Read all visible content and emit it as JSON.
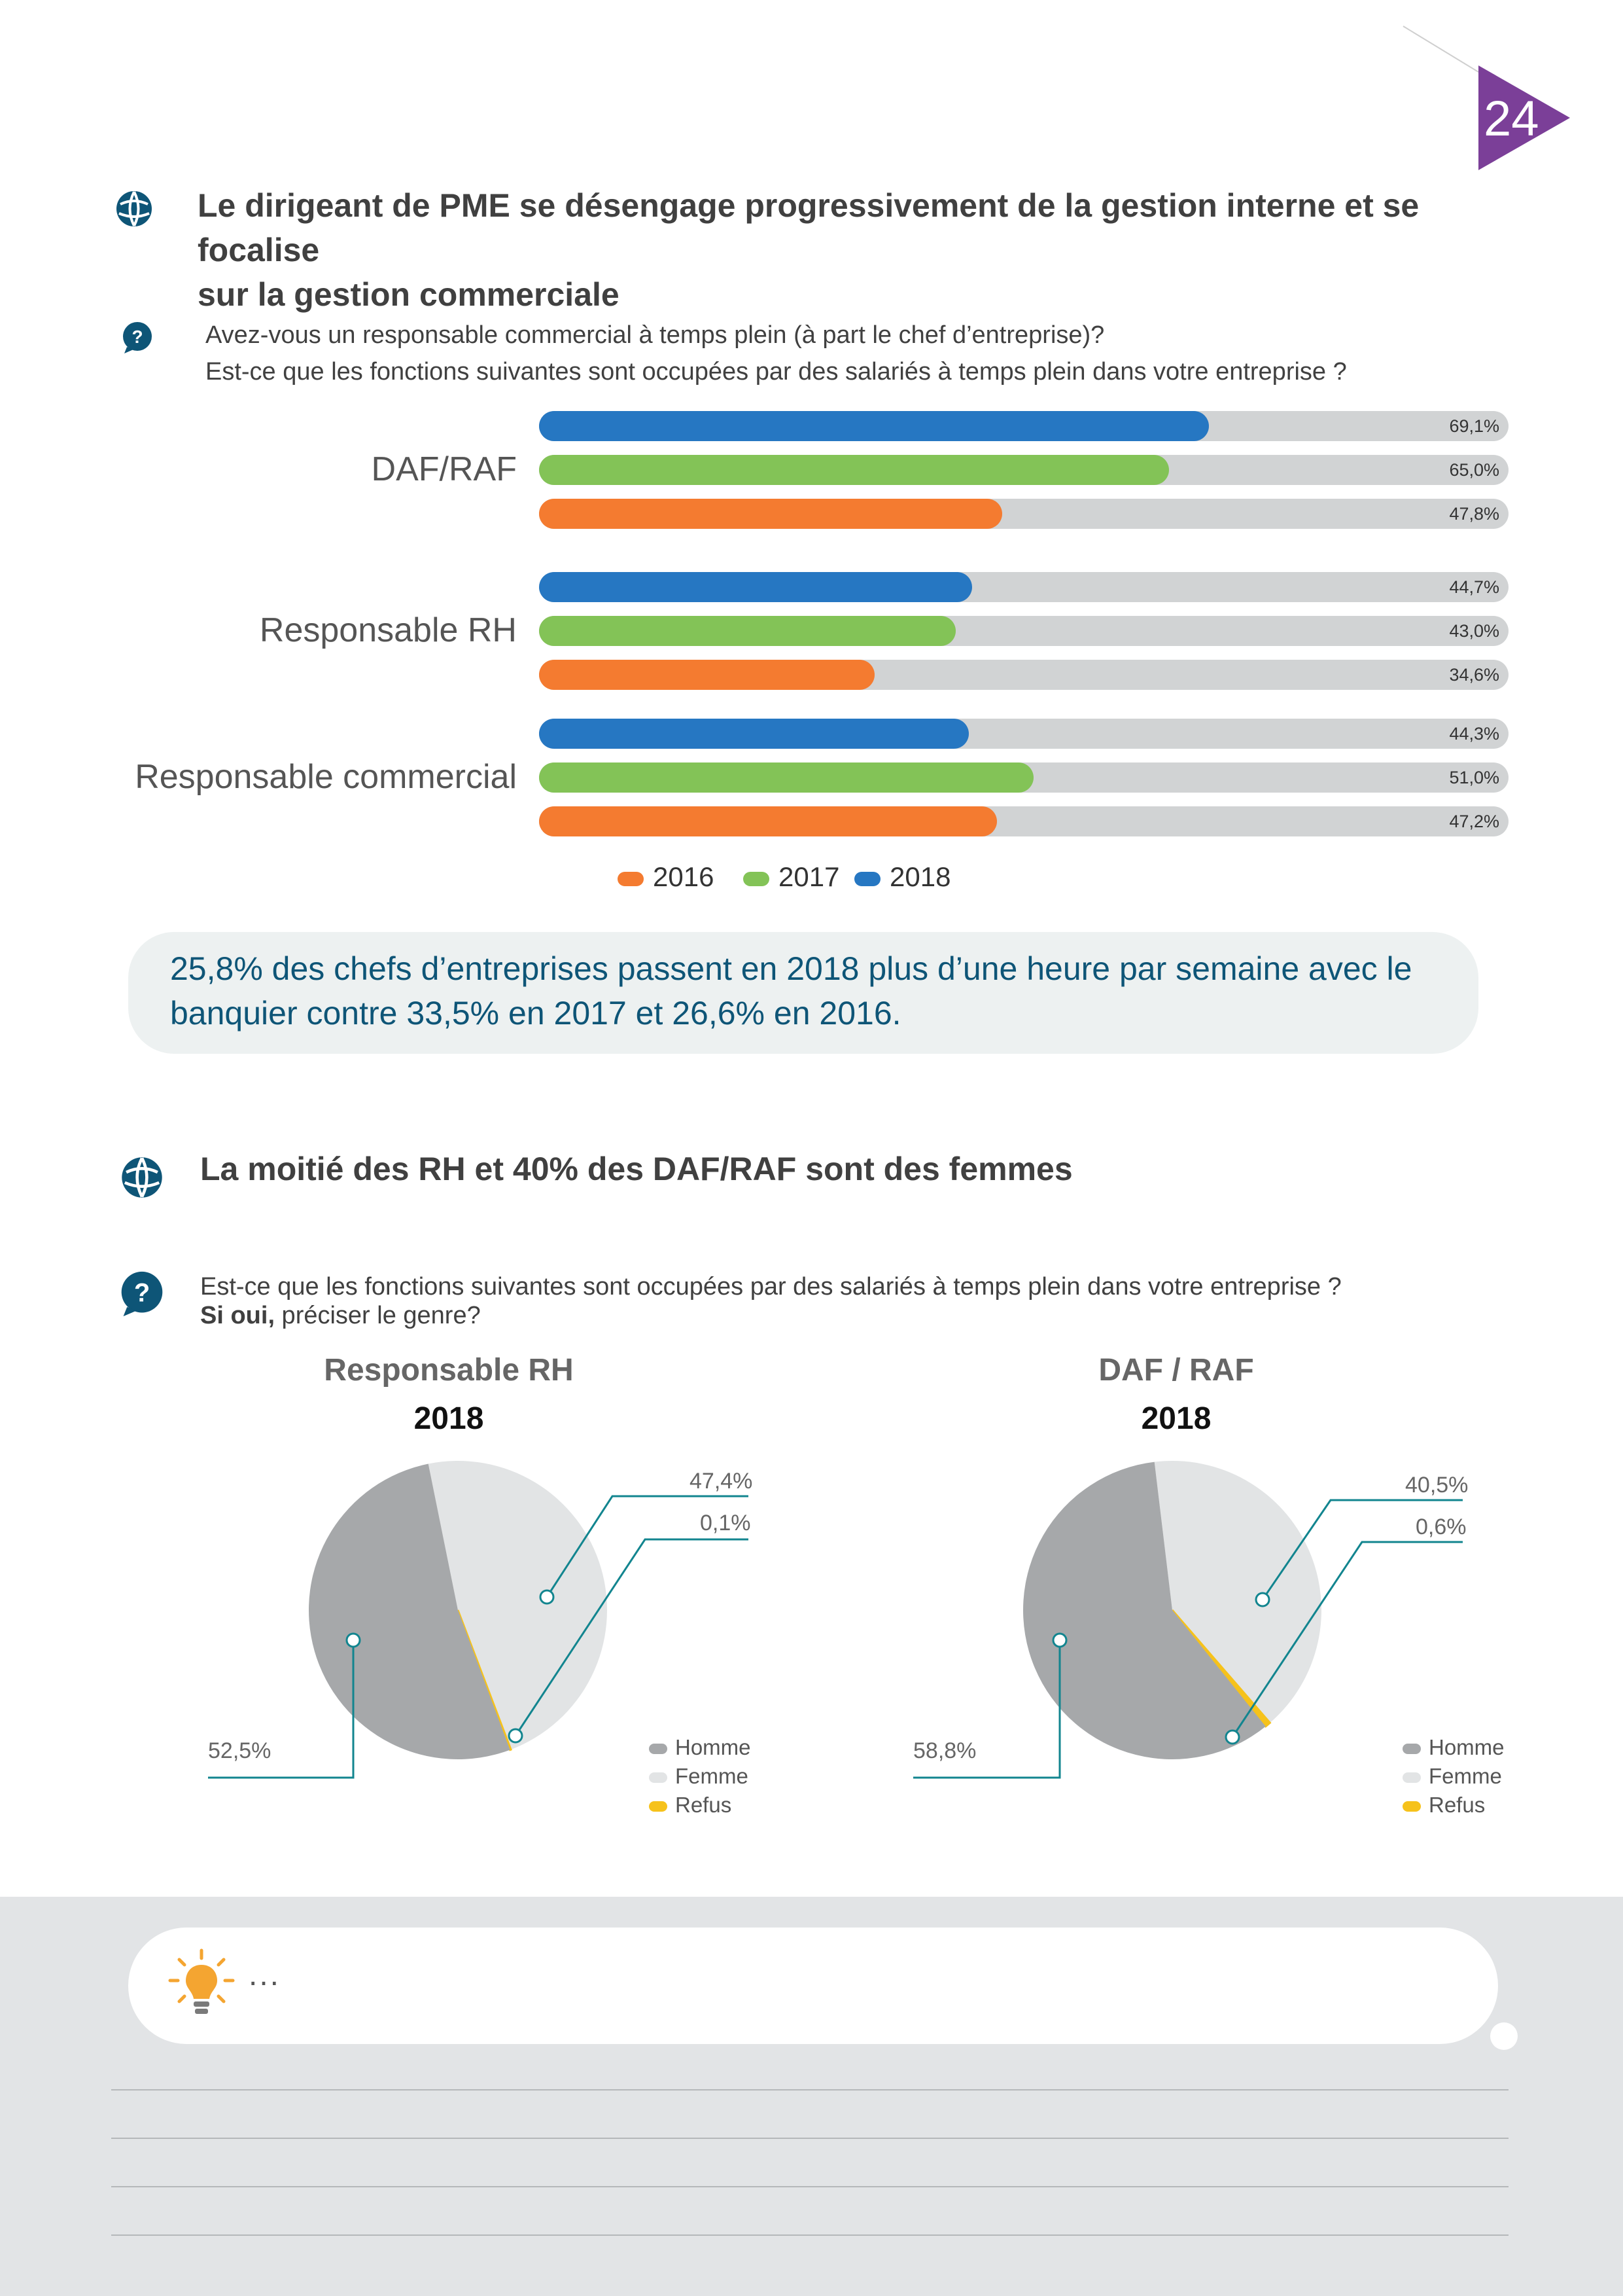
{
  "page": {
    "number": "24",
    "accent": "#7b3f98"
  },
  "section1": {
    "title_line1": "Le dirigeant de PME se désengage progressivement de la  gestion interne et se focalise",
    "title_line2": "sur la gestion commerciale",
    "icon": "globe-icon"
  },
  "question1": {
    "icon": "question-icon",
    "line1": "Avez-vous un responsable commercial à temps plein (à part le chef d’entreprise)?",
    "line2": "Est-ce que les fonctions suivantes sont occupées par des salariés à temps plein dans votre entreprise ?"
  },
  "chart_data": [
    {
      "type": "bar",
      "orientation": "horizontal",
      "categories": [
        "DAF/RAF",
        "Responsable RH",
        "Responsable commercial"
      ],
      "series": [
        {
          "name": "2018",
          "color": "#2677c2",
          "values": [
            69.1,
            44.7,
            44.3
          ],
          "labels": [
            "69,1%",
            "44,7%",
            "44,3%"
          ]
        },
        {
          "name": "2017",
          "color": "#83c357",
          "values": [
            65.0,
            43.0,
            51.0
          ],
          "labels": [
            "65,0%",
            "43,0%",
            "51,0%"
          ]
        },
        {
          "name": "2016",
          "color": "#f47b30",
          "values": [
            47.8,
            34.6,
            47.2
          ],
          "labels": [
            "47,8%",
            "34,6%",
            "47,2%"
          ]
        }
      ],
      "xlim": [
        0,
        100
      ],
      "legend": [
        "2016",
        "2017",
        "2018"
      ],
      "legend_position": "bottom"
    },
    {
      "type": "pie",
      "title": "Responsable RH",
      "subtitle": "2018",
      "labels": [
        "Homme",
        "Femme",
        "Refus"
      ],
      "values": [
        52.5,
        47.4,
        0.1
      ],
      "value_labels": [
        "52,5%",
        "47,4%",
        "0,1%"
      ],
      "colors": [
        "#a6a8aa",
        "#e2e4e5",
        "#f6c21b"
      ],
      "legend_position": "bottom-right"
    },
    {
      "type": "pie",
      "title": "DAF / RAF",
      "subtitle": "2018",
      "labels": [
        "Homme",
        "Femme",
        "Refus"
      ],
      "values": [
        58.8,
        40.5,
        0.6
      ],
      "value_labels": [
        "58,8%",
        "40,5%",
        "0,6%"
      ],
      "colors": [
        "#a6a8aa",
        "#e2e4e5",
        "#f6c21b"
      ],
      "legend_position": "bottom-right"
    }
  ],
  "callout": {
    "line1": "25,8% des chefs d’entreprises passent en 2018 plus d’une heure par semaine avec le",
    "line2": "banquier contre 33,5% en 2017 et 26,6% en 2016."
  },
  "section2": {
    "title": "La moitié des RH et 40% des DAF/RAF sont des femmes",
    "icon": "globe-icon"
  },
  "question2": {
    "icon": "question-icon",
    "line1": "Est-ce que les fonctions suivantes sont occupées par des salariés à temps plein dans votre entreprise ?",
    "bold": "Si oui,",
    "rest": " préciser le genre?"
  },
  "note": {
    "icon": "lightbulb-icon",
    "text": "..."
  }
}
